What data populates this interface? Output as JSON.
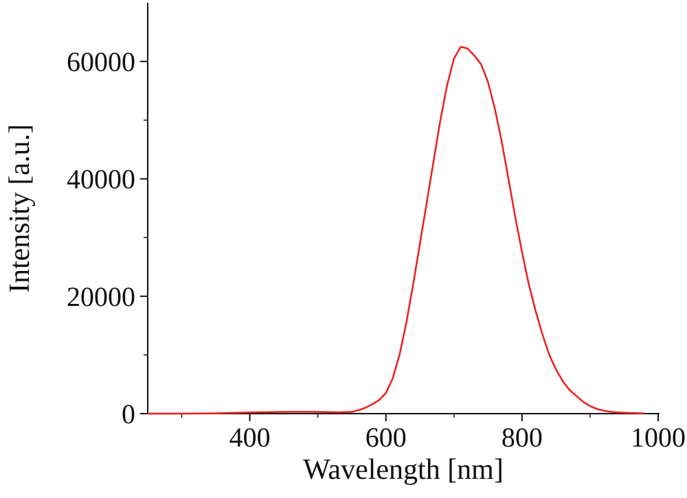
{
  "chart_data": {
    "type": "line",
    "x_label": "Wavelength [nm]",
    "y_label": "Intensity [a.u.]",
    "xlim": [
      250,
      1000
    ],
    "ylim": [
      0,
      70000
    ],
    "xticks": [
      400,
      600,
      800,
      1000
    ],
    "yticks": [
      0,
      20000,
      40000,
      60000
    ],
    "x": [
      250,
      300,
      350,
      400,
      450,
      500,
      530,
      550,
      560,
      570,
      580,
      590,
      600,
      610,
      620,
      630,
      640,
      650,
      660,
      670,
      680,
      690,
      700,
      710,
      720,
      730,
      740,
      750,
      760,
      770,
      780,
      790,
      800,
      810,
      820,
      830,
      840,
      850,
      860,
      870,
      880,
      890,
      900,
      910,
      920,
      930,
      940,
      960,
      980
    ],
    "series": [
      {
        "color": "#ee1c1c",
        "values": [
          0,
          0,
          50,
          200,
          300,
          300,
          200,
          300,
          600,
          1000,
          1600,
          2300,
          3500,
          6000,
          10000,
          15500,
          22000,
          29000,
          36000,
          43000,
          50000,
          56000,
          60500,
          62500,
          62200,
          61000,
          59500,
          56500,
          52000,
          46500,
          40000,
          33500,
          27500,
          22000,
          17500,
          13500,
          10000,
          7500,
          5500,
          4000,
          3000,
          2000,
          1300,
          800,
          500,
          300,
          200,
          100,
          50
        ]
      }
    ]
  }
}
